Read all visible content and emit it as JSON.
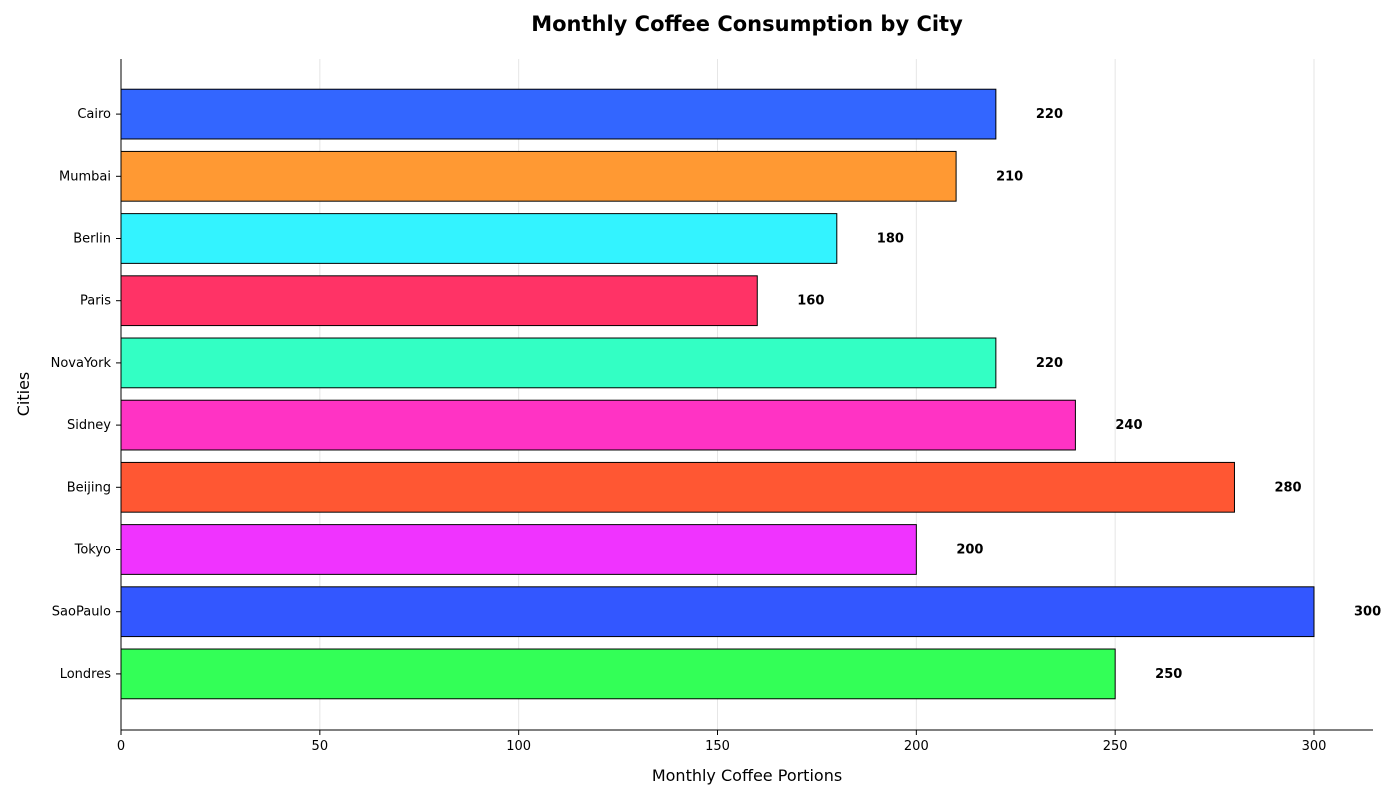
{
  "chart_data": {
    "type": "bar",
    "orientation": "horizontal",
    "title": "Monthly Coffee Consumption by City",
    "xlabel": "Monthly Coffee Portions",
    "ylabel": "Cities",
    "xlim": [
      0,
      315
    ],
    "xticks": [
      0,
      50,
      100,
      150,
      200,
      250,
      300
    ],
    "grid": true,
    "categories": [
      "Londres",
      "SaoPaulo",
      "Tokyo",
      "Beijing",
      "Sidney",
      "NovaYork",
      "Paris",
      "Berlin",
      "Mumbai",
      "Cairo"
    ],
    "values": [
      250,
      300,
      200,
      280,
      240,
      220,
      160,
      180,
      210,
      220
    ],
    "colors": [
      "#33ff57",
      "#3357ff",
      "#f033ff",
      "#ff5733",
      "#ff33c4",
      "#33ffc4",
      "#ff3366",
      "#33f3ff",
      "#ff9933",
      "#3366ff"
    ]
  }
}
